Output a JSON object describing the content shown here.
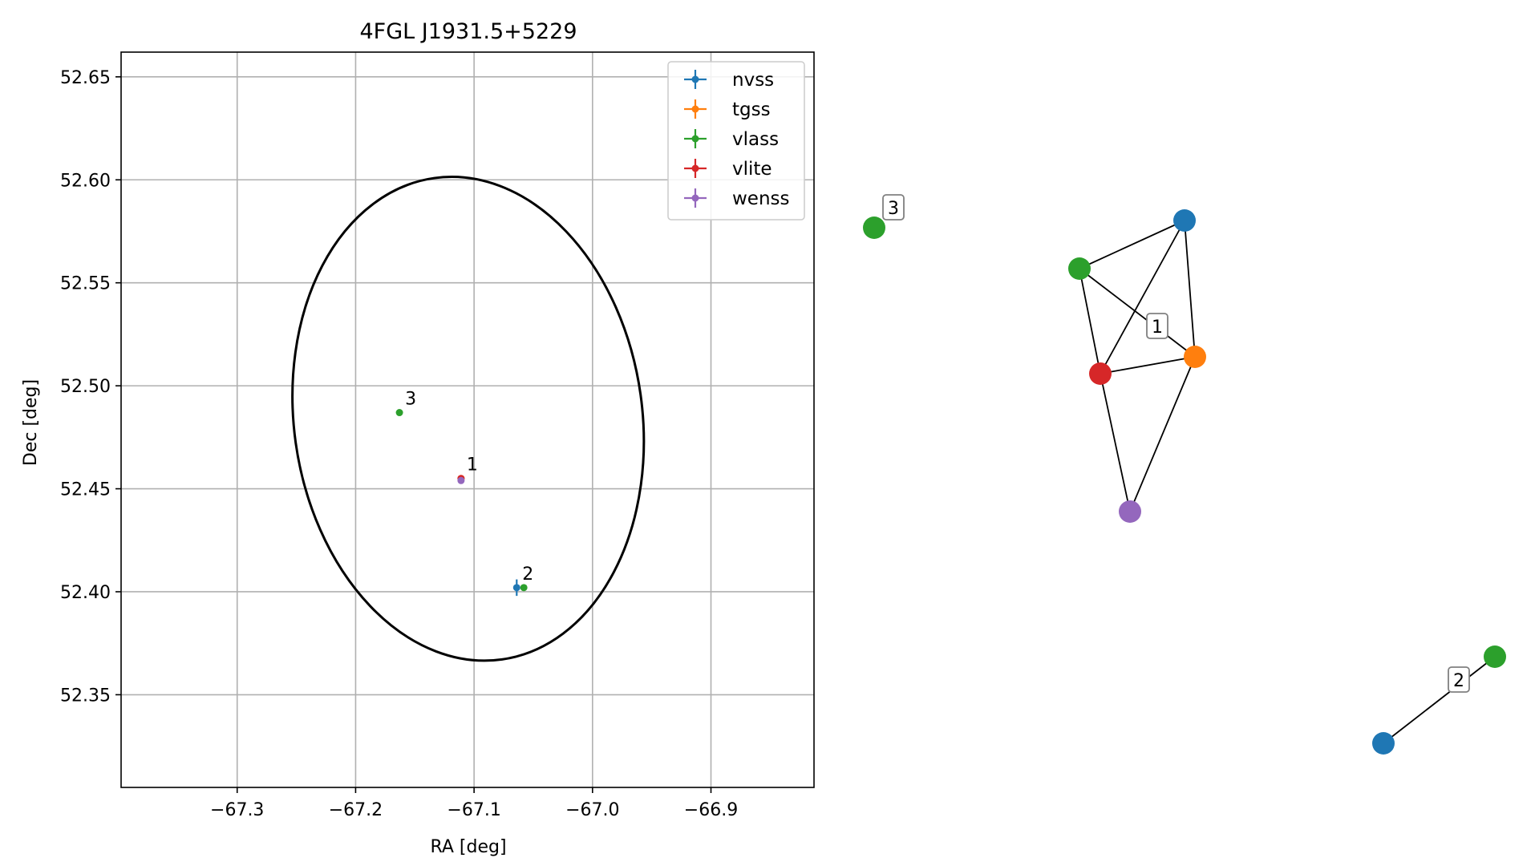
{
  "chart_data": [
    {
      "type": "scatter",
      "title": "4FGL J1931.5+5229",
      "xlabel": "RA [deg]",
      "ylabel": "Dec [deg]",
      "xlim": [
        -67.398,
        -66.813
      ],
      "ylim": [
        52.305,
        52.662
      ],
      "xticks": [
        -67.3,
        -67.2,
        -67.1,
        -67.0,
        -66.9
      ],
      "xtick_labels": [
        "−67.3",
        "−67.2",
        "−67.1",
        "−67.0",
        "−66.9"
      ],
      "yticks": [
        52.35,
        52.4,
        52.45,
        52.5,
        52.55,
        52.6,
        52.65
      ],
      "ytick_labels": [
        "52.35",
        "52.40",
        "52.45",
        "52.50",
        "52.55",
        "52.60",
        "52.65"
      ],
      "grid": true,
      "legend_position": "top-right",
      "ellipse": {
        "center": [
          -67.105,
          52.484
        ],
        "semi_axis_ra": 0.147,
        "semi_axis_dec": 0.118,
        "angle_deg": -8
      },
      "series": [
        {
          "name": "nvss",
          "color": "#1f77b4",
          "points": [
            {
              "x": -67.064,
              "y": 52.402,
              "dx": 0.002,
              "dy": 0.004
            }
          ]
        },
        {
          "name": "tgss",
          "color": "#ff7f0e",
          "points": [
            {
              "x": -67.111,
              "y": 52.455,
              "dx": 0.001,
              "dy": 0.001
            }
          ]
        },
        {
          "name": "vlass",
          "color": "#2ca02c",
          "points": [
            {
              "x": -67.163,
              "y": 52.487,
              "dx": 0.0005,
              "dy": 0.0005
            },
            {
              "x": -67.058,
              "y": 52.402,
              "dx": 0.0005,
              "dy": 0.0005
            }
          ]
        },
        {
          "name": "vlite",
          "color": "#d62728",
          "points": [
            {
              "x": -67.111,
              "y": 52.455,
              "dx": 0.0005,
              "dy": 0.0005
            }
          ]
        },
        {
          "name": "wenss",
          "color": "#9467bd",
          "points": [
            {
              "x": -67.111,
              "y": 52.454,
              "dx": 0.0005,
              "dy": 0.0005
            }
          ]
        }
      ],
      "annotations": [
        {
          "text": "1",
          "x": -67.111,
          "y": 52.455
        },
        {
          "text": "2",
          "x": -67.064,
          "y": 52.402
        },
        {
          "text": "3",
          "x": -67.163,
          "y": 52.487
        }
      ]
    },
    {
      "type": "network",
      "nodes": [
        {
          "id": "g3",
          "color": "#2ca02c"
        },
        {
          "id": "b1",
          "color": "#1f77b4"
        },
        {
          "id": "gr1",
          "color": "#2ca02c"
        },
        {
          "id": "o1",
          "color": "#ff7f0e"
        },
        {
          "id": "r1",
          "color": "#d62728"
        },
        {
          "id": "p1",
          "color": "#9467bd"
        },
        {
          "id": "g2",
          "color": "#2ca02c"
        },
        {
          "id": "b2",
          "color": "#1f77b4"
        }
      ],
      "edges": [
        [
          "gr1",
          "b1"
        ],
        [
          "gr1",
          "o1"
        ],
        [
          "gr1",
          "r1"
        ],
        [
          "b1",
          "r1"
        ],
        [
          "b1",
          "o1"
        ],
        [
          "r1",
          "o1"
        ],
        [
          "r1",
          "p1"
        ],
        [
          "o1",
          "p1"
        ],
        [
          "b2",
          "g2"
        ]
      ],
      "labels": [
        "3",
        "1",
        "2"
      ]
    }
  ]
}
